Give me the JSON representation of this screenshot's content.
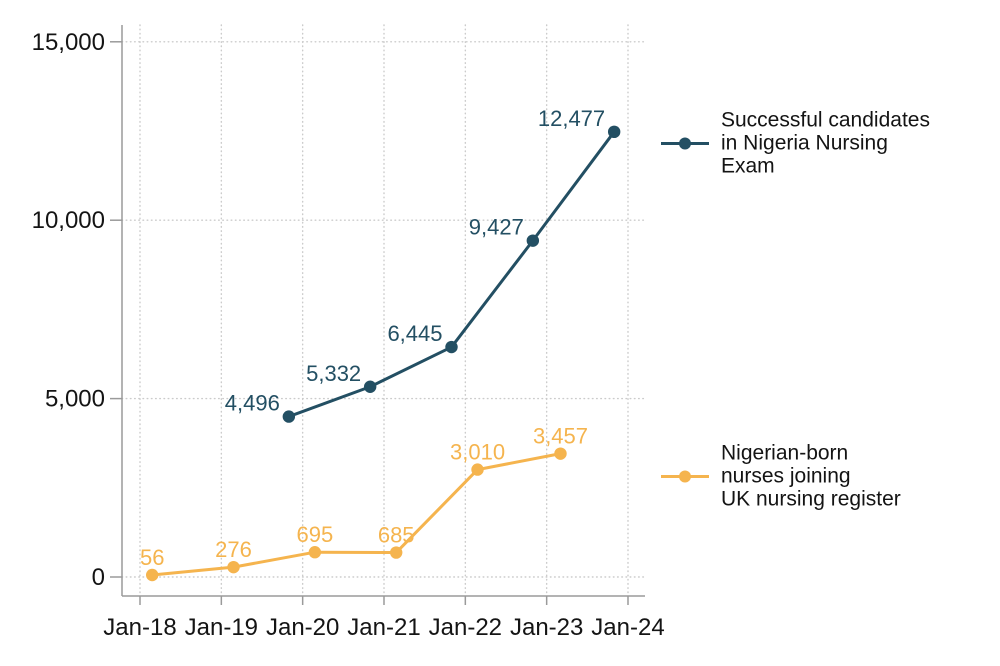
{
  "chart_data": {
    "type": "line",
    "title": "",
    "xlabel": "",
    "ylabel": "",
    "grid": "dotted",
    "legend_position": "right",
    "x_axis": {
      "tick_labels": [
        "Jan-18",
        "Jan-19",
        "Jan-20",
        "Jan-21",
        "Jan-22",
        "Jan-23",
        "Jan-24"
      ],
      "x_unit": "years from Jan-18 tick"
    },
    "y_axis": {
      "range": [
        0,
        15000
      ],
      "tick_values": [
        0,
        5000,
        10000,
        15000
      ],
      "tick_labels": [
        "0",
        "5,000",
        "10,000",
        "15,000"
      ]
    },
    "series": [
      {
        "name": "Successful candidates in Nigeria Nursing Exam",
        "legend_lines": [
          "Successful candidates",
          "in Nigeria Nursing",
          "Exam"
        ],
        "color": "#234f63",
        "label_placement": "left",
        "points": [
          {
            "x": 1.83,
            "value": 4496,
            "label": "4,496"
          },
          {
            "x": 2.83,
            "value": 5332,
            "label": "5,332"
          },
          {
            "x": 3.83,
            "value": 6445,
            "label": "6,445"
          },
          {
            "x": 4.83,
            "value": 9427,
            "label": "9,427"
          },
          {
            "x": 5.83,
            "value": 12477,
            "label": "12,477"
          }
        ]
      },
      {
        "name": "Nigerian-born nurses joining UK nursing register",
        "legend_lines": [
          "Nigerian-born",
          "nurses joining",
          "UK nursing register"
        ],
        "color": "#f5b44e",
        "label_placement": "above",
        "points": [
          {
            "x": 0.15,
            "value": 56,
            "label": "56"
          },
          {
            "x": 1.15,
            "value": 276,
            "label": "276"
          },
          {
            "x": 2.15,
            "value": 695,
            "label": "695"
          },
          {
            "x": 3.15,
            "value": 685,
            "label": "685"
          },
          {
            "x": 4.15,
            "value": 3010,
            "label": "3,010"
          },
          {
            "x": 5.17,
            "value": 3457,
            "label": "3,457"
          }
        ]
      }
    ]
  },
  "colors": {
    "axis": "#9a9a9a",
    "grid": "#cbcbcb",
    "text": "#141414",
    "background": "#ffffff"
  }
}
